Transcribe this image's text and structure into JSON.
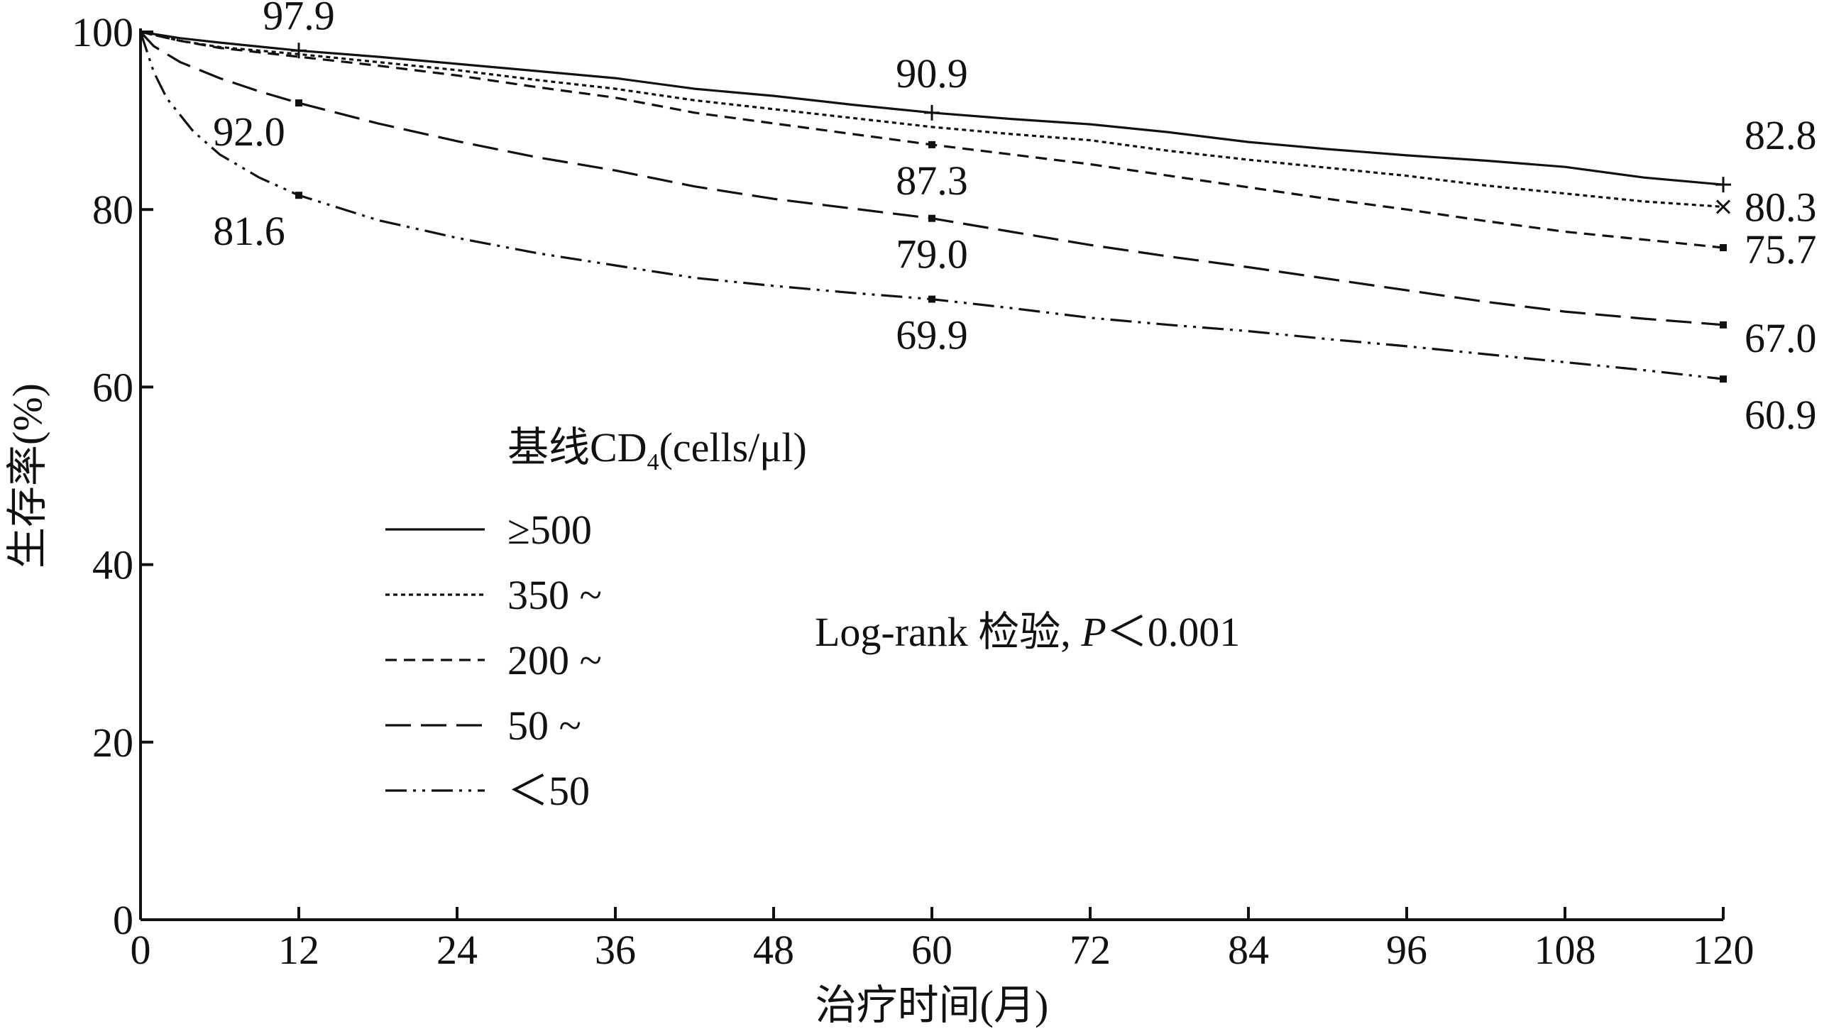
{
  "chart_data": {
    "type": "line",
    "title": "",
    "xlabel": "治疗时间(月)",
    "ylabel": "生存率(%)",
    "xlim": [
      0,
      120
    ],
    "ylim": [
      0,
      100
    ],
    "x_ticks": [
      0,
      12,
      24,
      36,
      48,
      60,
      72,
      84,
      96,
      108,
      120
    ],
    "y_ticks": [
      0,
      20,
      40,
      60,
      80,
      100
    ],
    "grid": false,
    "legend": {
      "title_main": "基线CD",
      "title_sub": "4",
      "title_unit": "(cells/μl)",
      "placement": "center-left"
    },
    "annotation": {
      "prefix": "Log-rank 检验, ",
      "p": "P",
      "suffix": "＜0.001"
    },
    "series": [
      {
        "name": "≥500",
        "dash": "solid",
        "marker": "plus",
        "x": [
          0,
          3,
          6,
          12,
          18,
          24,
          30,
          36,
          42,
          48,
          54,
          60,
          66,
          72,
          78,
          84,
          90,
          96,
          102,
          108,
          114,
          120
        ],
        "values": [
          100,
          99.3,
          98.8,
          97.9,
          97.2,
          96.4,
          95.6,
          94.8,
          93.6,
          92.8,
          91.8,
          90.9,
          90.2,
          89.6,
          88.7,
          87.6,
          86.8,
          86.1,
          85.5,
          84.8,
          83.6,
          82.8
        ],
        "labeled_points": [
          {
            "x": 12,
            "y": 97.9,
            "text": "97.9"
          },
          {
            "x": 60,
            "y": 90.9,
            "text": "90.9"
          },
          {
            "x": 120,
            "y": 82.8,
            "text": "82.8"
          }
        ]
      },
      {
        "name": "350 ~",
        "dash": "dotted",
        "marker": "x",
        "x": [
          0,
          3,
          6,
          12,
          18,
          24,
          30,
          36,
          42,
          48,
          54,
          60,
          66,
          72,
          78,
          84,
          90,
          96,
          102,
          108,
          114,
          120
        ],
        "values": [
          100,
          99.0,
          98.3,
          97.5,
          96.6,
          95.7,
          94.6,
          93.6,
          92.3,
          91.3,
          90.3,
          89.3,
          88.5,
          87.8,
          86.6,
          85.6,
          84.7,
          83.8,
          82.7,
          81.8,
          80.9,
          80.3
        ],
        "labeled_points": [
          {
            "x": 120,
            "y": 80.3,
            "text": "80.3"
          }
        ]
      },
      {
        "name": "200 ~",
        "dash": "short-dash",
        "marker": "square",
        "x": [
          0,
          3,
          6,
          12,
          18,
          24,
          30,
          36,
          42,
          48,
          54,
          60,
          66,
          72,
          78,
          84,
          90,
          96,
          102,
          108,
          114,
          120
        ],
        "values": [
          100,
          99.0,
          98.2,
          97.2,
          96.2,
          95.1,
          93.8,
          92.6,
          90.9,
          89.7,
          88.5,
          87.3,
          86.2,
          85.1,
          83.8,
          82.5,
          81.2,
          80.0,
          78.7,
          77.5,
          76.6,
          75.7
        ],
        "labeled_points": [
          {
            "x": 60,
            "y": 87.3,
            "text": "87.3"
          },
          {
            "x": 120,
            "y": 75.7,
            "text": "75.7"
          }
        ]
      },
      {
        "name": "50 ~",
        "dash": "long-dash",
        "marker": "square",
        "x": [
          0,
          1,
          3,
          6,
          9,
          12,
          18,
          24,
          30,
          36,
          42,
          48,
          54,
          60,
          66,
          72,
          78,
          84,
          90,
          96,
          102,
          108,
          114,
          120
        ],
        "values": [
          100,
          98.4,
          96.6,
          94.8,
          93.3,
          92.0,
          89.7,
          87.7,
          85.9,
          84.4,
          82.6,
          81.2,
          80.1,
          79.0,
          77.5,
          76.0,
          74.7,
          73.5,
          72.2,
          70.9,
          69.6,
          68.5,
          67.7,
          67.0
        ],
        "labeled_points": [
          {
            "x": 12,
            "y": 92.0,
            "text": "92.0"
          },
          {
            "x": 60,
            "y": 79.0,
            "text": "79.0"
          },
          {
            "x": 120,
            "y": 67.0,
            "text": "67.0"
          }
        ]
      },
      {
        "name": "＜50",
        "dash": "dash-dot-dot",
        "marker": "square",
        "x": [
          0,
          1,
          2,
          4,
          6,
          9,
          12,
          18,
          24,
          30,
          36,
          42,
          48,
          54,
          60,
          66,
          72,
          78,
          84,
          90,
          96,
          102,
          108,
          114,
          120
        ],
        "values": [
          100,
          95.5,
          92.5,
          88.8,
          86.2,
          83.6,
          81.6,
          78.8,
          76.8,
          75.1,
          73.7,
          72.3,
          71.4,
          70.6,
          69.9,
          68.9,
          67.8,
          67.0,
          66.3,
          65.4,
          64.6,
          63.7,
          62.8,
          61.9,
          60.9
        ],
        "labeled_points": [
          {
            "x": 12,
            "y": 81.6,
            "text": "81.6"
          },
          {
            "x": 60,
            "y": 69.9,
            "text": "69.9"
          },
          {
            "x": 120,
            "y": 60.9,
            "text": "60.9"
          }
        ]
      }
    ]
  }
}
